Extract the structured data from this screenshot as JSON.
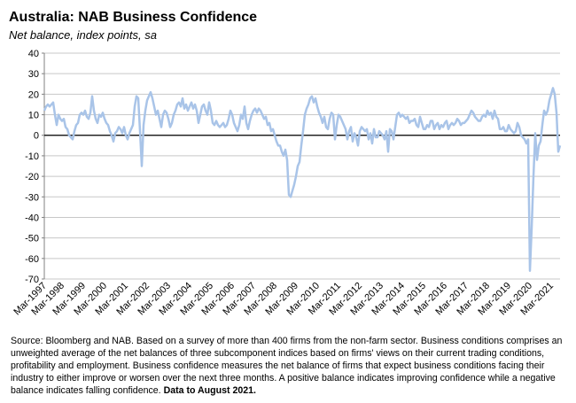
{
  "chart_data": {
    "type": "line",
    "title": "Australia: NAB Business Confidence",
    "subtitle": "Net balance, index points, sa",
    "source": "Source: Bloomberg and NAB. Based on a survey of more than 400 firms from the non-farm sector.  Business conditions comprises an unweighted average of the net balances of three subcomponent indices based on firms' views on their current trading conditions, profitability and employment.  Business confidence measures the net balance of firms that expect business conditions facing their industry to either improve or worsen over the next three months.  A positive balance indicates improving confidence while a negative balance indicates falling confidence.",
    "source_bold": "Data to August 2021.",
    "color": "#a9c4e8",
    "ylim": [
      -70,
      40
    ],
    "yticks": [
      -70,
      -60,
      -50,
      -40,
      -30,
      -20,
      -10,
      0,
      10,
      20,
      30,
      40
    ],
    "grid": true,
    "categories": [
      "Mar-1997",
      null,
      null,
      null,
      null,
      null,
      null,
      null,
      null,
      null,
      "Mar-1998",
      null,
      null,
      null,
      null,
      null,
      null,
      null,
      null,
      null,
      null,
      null,
      "Mar-1999",
      null,
      null,
      null,
      null,
      null,
      null,
      null,
      null,
      null,
      null,
      null,
      "Mar-2000",
      null,
      null,
      null,
      null,
      null,
      null,
      null,
      null,
      null,
      null,
      null,
      "Mar-2001",
      null,
      null,
      null,
      null,
      null,
      null,
      null,
      null,
      null,
      null,
      null,
      "Mar-2002",
      null,
      null,
      null,
      null,
      null,
      null,
      null,
      null,
      null,
      null,
      null,
      "Mar-2003",
      null,
      null,
      null,
      null,
      null,
      null,
      null,
      null,
      null,
      null,
      null,
      "Mar-2004",
      null,
      null,
      null,
      null,
      null,
      null,
      null,
      null,
      null,
      null,
      null,
      "Mar-2005",
      null,
      null,
      null,
      null,
      null,
      null,
      null,
      null,
      null,
      null,
      null,
      "Mar-2006",
      null,
      null,
      null,
      null,
      null,
      null,
      null,
      null,
      null,
      null,
      null,
      "Mar-2007",
      null,
      null,
      null,
      null,
      null,
      null,
      null,
      null,
      null,
      null,
      null,
      "Mar-2008",
      null,
      null,
      null,
      null,
      null,
      null,
      null,
      null,
      null,
      null,
      null,
      "Mar-2009",
      null,
      null,
      null,
      null,
      null,
      null,
      null,
      null,
      null,
      null,
      null,
      "Mar-2010",
      null,
      null,
      null,
      null,
      null,
      null,
      null,
      null,
      null,
      null,
      null,
      "Mar-2011",
      null,
      null,
      null,
      null,
      null,
      null,
      null,
      null,
      null,
      null,
      null,
      "Mar-2012",
      null,
      null,
      null,
      null,
      null,
      null,
      null,
      null,
      null,
      null,
      null,
      "Mar-2013",
      null,
      null,
      null,
      null,
      null,
      null,
      null,
      null,
      null,
      null,
      null,
      "Mar-2014",
      null,
      null,
      null,
      null,
      null,
      null,
      null,
      null,
      null,
      null,
      null,
      "Mar-2015",
      null,
      null,
      null,
      null,
      null,
      null,
      null,
      null,
      null,
      null,
      null,
      "Mar-2016",
      null,
      null,
      null,
      null,
      null,
      null,
      null,
      null,
      null,
      null,
      null,
      "Mar-2017",
      null,
      null,
      null,
      null,
      null,
      null,
      null,
      null,
      null,
      null,
      null,
      "Mar-2018",
      null,
      null,
      null,
      null,
      null,
      null,
      null,
      null,
      null,
      null,
      null,
      "Mar-2019",
      null,
      null,
      null,
      null,
      null,
      null,
      null,
      null,
      null,
      null,
      null,
      "Mar-2020",
      null,
      null,
      null,
      null,
      null,
      null,
      null,
      null,
      null,
      null,
      null,
      "Mar-2021",
      null,
      null,
      null,
      null,
      null
    ],
    "values": [
      12,
      14,
      15,
      14,
      15,
      16,
      10,
      5,
      10,
      8,
      7,
      8,
      4,
      3,
      0,
      -1,
      -2,
      2,
      5,
      6,
      10,
      11,
      10,
      12,
      9,
      8,
      11,
      19,
      12,
      8,
      6,
      10,
      9,
      11,
      8,
      6,
      5,
      2,
      0,
      -3,
      1,
      2,
      4,
      3,
      1,
      4,
      0,
      -2,
      1,
      3,
      5,
      14,
      19,
      18,
      2,
      -15,
      5,
      12,
      17,
      19,
      21,
      18,
      14,
      10,
      12,
      8,
      4,
      10,
      12,
      11,
      8,
      4,
      6,
      10,
      12,
      15,
      16,
      14,
      18,
      13,
      15,
      12,
      14,
      16,
      13,
      15,
      12,
      6,
      10,
      14,
      15,
      12,
      10,
      16,
      12,
      6,
      5,
      7,
      5,
      4,
      5,
      6,
      4,
      5,
      8,
      12,
      10,
      6,
      4,
      2,
      5,
      10,
      8,
      14,
      6,
      3,
      7,
      10,
      12,
      13,
      11,
      13,
      12,
      10,
      8,
      9,
      5,
      6,
      2,
      3,
      0,
      -3,
      -5,
      -5,
      -8,
      -10,
      -7,
      -12,
      -29,
      -30,
      -27,
      -24,
      -20,
      -15,
      -13,
      -5,
      2,
      10,
      13,
      15,
      18,
      19,
      16,
      18,
      14,
      11,
      9,
      6,
      9,
      4,
      3,
      8,
      11,
      10,
      -2,
      5,
      10,
      9,
      7,
      5,
      3,
      -2,
      2,
      4,
      -3,
      1,
      -1,
      -5,
      2,
      4,
      3,
      2,
      3,
      -2,
      1,
      -4,
      3,
      -1,
      -1,
      2,
      1,
      0,
      -2,
      2,
      -8,
      3,
      2,
      -2,
      4,
      10,
      11,
      9,
      10,
      9,
      8,
      9,
      6,
      7,
      7,
      8,
      5,
      4,
      9,
      6,
      3,
      3,
      5,
      4,
      7,
      7,
      3,
      5,
      6,
      3,
      5,
      4,
      6,
      7,
      3,
      5,
      6,
      5,
      6,
      8,
      7,
      5,
      6,
      6,
      7,
      8,
      10,
      12,
      11,
      9,
      8,
      7,
      7,
      9,
      10,
      9,
      12,
      10,
      11,
      8,
      12,
      9,
      8,
      3,
      3,
      4,
      2,
      2,
      5,
      3,
      2,
      1,
      2,
      6,
      4,
      0,
      -1,
      -2,
      -4,
      -2,
      -66,
      -45,
      -20,
      1,
      -12,
      -5,
      -3,
      5,
      12,
      10,
      12,
      17,
      20,
      23,
      20,
      11,
      -8,
      -5
    ]
  }
}
